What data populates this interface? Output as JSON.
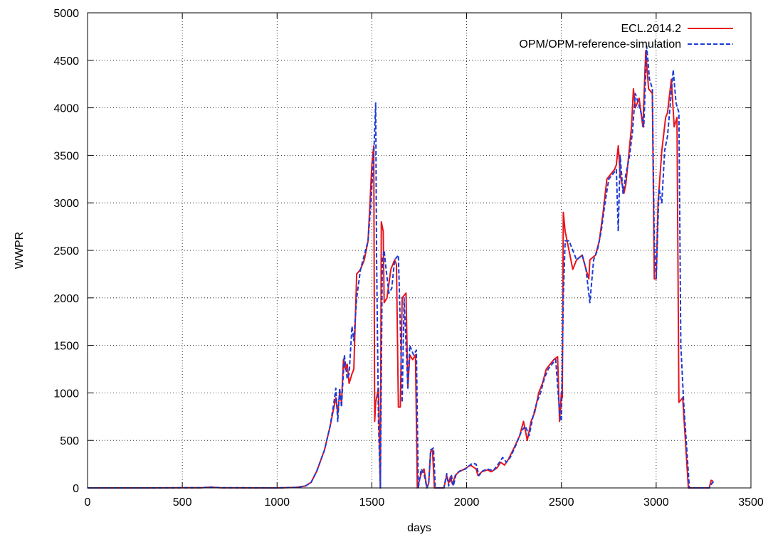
{
  "chart_data": {
    "type": "line",
    "title": "",
    "xlabel": "days",
    "ylabel": "WWPR",
    "xlim": [
      0,
      3500
    ],
    "ylim": [
      0,
      5000
    ],
    "x_ticks": [
      0,
      500,
      1000,
      1500,
      2000,
      2500,
      3000,
      3500
    ],
    "y_ticks": [
      0,
      500,
      1000,
      1500,
      2000,
      2500,
      3000,
      3500,
      4000,
      4500,
      5000
    ],
    "grid": true,
    "legend_position": "top-right",
    "series": [
      {
        "name": "ECL.2014.2",
        "color": "#e8141c",
        "dash": "solid",
        "points": [
          [
            0,
            0
          ],
          [
            300,
            0
          ],
          [
            600,
            2
          ],
          [
            650,
            8
          ],
          [
            700,
            2
          ],
          [
            1000,
            0
          ],
          [
            1100,
            5
          ],
          [
            1150,
            20
          ],
          [
            1180,
            60
          ],
          [
            1210,
            180
          ],
          [
            1250,
            400
          ],
          [
            1280,
            650
          ],
          [
            1300,
            850
          ],
          [
            1310,
            950
          ],
          [
            1320,
            780
          ],
          [
            1330,
            1000
          ],
          [
            1340,
            900
          ],
          [
            1350,
            1350
          ],
          [
            1360,
            1250
          ],
          [
            1370,
            1300
          ],
          [
            1380,
            1100
          ],
          [
            1395,
            1200
          ],
          [
            1405,
            1250
          ],
          [
            1420,
            2250
          ],
          [
            1440,
            2300
          ],
          [
            1460,
            2400
          ],
          [
            1480,
            2600
          ],
          [
            1490,
            3000
          ],
          [
            1500,
            3400
          ],
          [
            1510,
            3600
          ],
          [
            1515,
            700
          ],
          [
            1520,
            900
          ],
          [
            1535,
            1050
          ],
          [
            1545,
            0
          ],
          [
            1550,
            2800
          ],
          [
            1560,
            2700
          ],
          [
            1565,
            1950
          ],
          [
            1580,
            2000
          ],
          [
            1600,
            2300
          ],
          [
            1620,
            2400
          ],
          [
            1630,
            2350
          ],
          [
            1640,
            850
          ],
          [
            1650,
            850
          ],
          [
            1660,
            2000
          ],
          [
            1680,
            2050
          ],
          [
            1690,
            1050
          ],
          [
            1700,
            1400
          ],
          [
            1715,
            1350
          ],
          [
            1730,
            1400
          ],
          [
            1740,
            0
          ],
          [
            1760,
            150
          ],
          [
            1775,
            200
          ],
          [
            1790,
            0
          ],
          [
            1800,
            50
          ],
          [
            1810,
            380
          ],
          [
            1820,
            400
          ],
          [
            1830,
            0
          ],
          [
            1880,
            0
          ],
          [
            1895,
            130
          ],
          [
            1905,
            50
          ],
          [
            1915,
            120
          ],
          [
            1925,
            40
          ],
          [
            1940,
            130
          ],
          [
            1960,
            170
          ],
          [
            1990,
            200
          ],
          [
            2020,
            240
          ],
          [
            2050,
            200
          ],
          [
            2060,
            130
          ],
          [
            2080,
            170
          ],
          [
            2110,
            190
          ],
          [
            2130,
            170
          ],
          [
            2160,
            210
          ],
          [
            2180,
            270
          ],
          [
            2200,
            240
          ],
          [
            2220,
            300
          ],
          [
            2250,
            420
          ],
          [
            2280,
            550
          ],
          [
            2300,
            700
          ],
          [
            2320,
            500
          ],
          [
            2340,
            700
          ],
          [
            2360,
            800
          ],
          [
            2380,
            1000
          ],
          [
            2400,
            1100
          ],
          [
            2420,
            1250
          ],
          [
            2440,
            1300
          ],
          [
            2460,
            1350
          ],
          [
            2480,
            1380
          ],
          [
            2490,
            700
          ],
          [
            2500,
            1000
          ],
          [
            2505,
            950
          ],
          [
            2510,
            2900
          ],
          [
            2520,
            2700
          ],
          [
            2540,
            2500
          ],
          [
            2560,
            2300
          ],
          [
            2580,
            2400
          ],
          [
            2610,
            2450
          ],
          [
            2630,
            2300
          ],
          [
            2645,
            2200
          ],
          [
            2650,
            2400
          ],
          [
            2680,
            2450
          ],
          [
            2700,
            2600
          ],
          [
            2720,
            2900
          ],
          [
            2740,
            3250
          ],
          [
            2760,
            3300
          ],
          [
            2780,
            3350
          ],
          [
            2790,
            3400
          ],
          [
            2800,
            3600
          ],
          [
            2810,
            3300
          ],
          [
            2820,
            3200
          ],
          [
            2830,
            3100
          ],
          [
            2840,
            3200
          ],
          [
            2860,
            3600
          ],
          [
            2870,
            3800
          ],
          [
            2880,
            4200
          ],
          [
            2890,
            4000
          ],
          [
            2910,
            4100
          ],
          [
            2930,
            3800
          ],
          [
            2945,
            4600
          ],
          [
            2960,
            4200
          ],
          [
            2980,
            4150
          ],
          [
            2990,
            2200
          ],
          [
            3000,
            2200
          ],
          [
            3010,
            3000
          ],
          [
            3030,
            3550
          ],
          [
            3050,
            3900
          ],
          [
            3060,
            3950
          ],
          [
            3080,
            4300
          ],
          [
            3095,
            3800
          ],
          [
            3110,
            3900
          ],
          [
            3120,
            900
          ],
          [
            3140,
            950
          ],
          [
            3170,
            0
          ],
          [
            3280,
            0
          ],
          [
            3290,
            80
          ],
          [
            3300,
            70
          ]
        ]
      },
      {
        "name": "OPM/OPM-reference-simulation",
        "color": "#1a3cd8",
        "dash": "dashed",
        "points": [
          [
            0,
            0
          ],
          [
            300,
            0
          ],
          [
            600,
            2
          ],
          [
            650,
            8
          ],
          [
            700,
            2
          ],
          [
            1000,
            0
          ],
          [
            1100,
            5
          ],
          [
            1150,
            20
          ],
          [
            1180,
            60
          ],
          [
            1210,
            180
          ],
          [
            1250,
            400
          ],
          [
            1280,
            650
          ],
          [
            1300,
            900
          ],
          [
            1310,
            1050
          ],
          [
            1320,
            700
          ],
          [
            1330,
            1050
          ],
          [
            1340,
            850
          ],
          [
            1355,
            1400
          ],
          [
            1370,
            1150
          ],
          [
            1380,
            1200
          ],
          [
            1395,
            1700
          ],
          [
            1405,
            1550
          ],
          [
            1420,
            2000
          ],
          [
            1440,
            2300
          ],
          [
            1460,
            2450
          ],
          [
            1480,
            2600
          ],
          [
            1495,
            3000
          ],
          [
            1510,
            3500
          ],
          [
            1520,
            4050
          ],
          [
            1525,
            2400
          ],
          [
            1535,
            700
          ],
          [
            1545,
            0
          ],
          [
            1555,
            2400
          ],
          [
            1565,
            2500
          ],
          [
            1575,
            2300
          ],
          [
            1590,
            2050
          ],
          [
            1605,
            2100
          ],
          [
            1620,
            2400
          ],
          [
            1640,
            2450
          ],
          [
            1650,
            1700
          ],
          [
            1660,
            900
          ],
          [
            1670,
            2000
          ],
          [
            1690,
            1050
          ],
          [
            1700,
            1500
          ],
          [
            1720,
            1400
          ],
          [
            1735,
            1450
          ],
          [
            1745,
            0
          ],
          [
            1760,
            200
          ],
          [
            1775,
            150
          ],
          [
            1790,
            0
          ],
          [
            1800,
            50
          ],
          [
            1810,
            400
          ],
          [
            1825,
            420
          ],
          [
            1835,
            0
          ],
          [
            1880,
            0
          ],
          [
            1895,
            150
          ],
          [
            1905,
            20
          ],
          [
            1920,
            130
          ],
          [
            1930,
            20
          ],
          [
            1945,
            150
          ],
          [
            1965,
            180
          ],
          [
            1995,
            200
          ],
          [
            2030,
            260
          ],
          [
            2050,
            250
          ],
          [
            2065,
            130
          ],
          [
            2085,
            180
          ],
          [
            2110,
            200
          ],
          [
            2140,
            180
          ],
          [
            2170,
            260
          ],
          [
            2190,
            320
          ],
          [
            2210,
            270
          ],
          [
            2230,
            320
          ],
          [
            2260,
            450
          ],
          [
            2290,
            600
          ],
          [
            2310,
            650
          ],
          [
            2330,
            550
          ],
          [
            2350,
            750
          ],
          [
            2370,
            900
          ],
          [
            2390,
            1000
          ],
          [
            2410,
            1150
          ],
          [
            2430,
            1250
          ],
          [
            2450,
            1300
          ],
          [
            2470,
            1350
          ],
          [
            2490,
            800
          ],
          [
            2500,
            700
          ],
          [
            2510,
            2000
          ],
          [
            2520,
            2600
          ],
          [
            2540,
            2600
          ],
          [
            2560,
            2500
          ],
          [
            2580,
            2400
          ],
          [
            2610,
            2450
          ],
          [
            2630,
            2300
          ],
          [
            2650,
            1950
          ],
          [
            2670,
            2400
          ],
          [
            2690,
            2500
          ],
          [
            2710,
            2700
          ],
          [
            2730,
            3000
          ],
          [
            2750,
            3250
          ],
          [
            2770,
            3300
          ],
          [
            2790,
            3350
          ],
          [
            2800,
            2700
          ],
          [
            2810,
            3500
          ],
          [
            2825,
            3100
          ],
          [
            2840,
            3300
          ],
          [
            2860,
            3500
          ],
          [
            2875,
            3750
          ],
          [
            2890,
            4150
          ],
          [
            2905,
            4050
          ],
          [
            2920,
            3950
          ],
          [
            2935,
            3800
          ],
          [
            2950,
            4650
          ],
          [
            2965,
            4300
          ],
          [
            2980,
            4200
          ],
          [
            2990,
            2600
          ],
          [
            3000,
            2200
          ],
          [
            3015,
            3150
          ],
          [
            3030,
            3000
          ],
          [
            3045,
            3550
          ],
          [
            3060,
            3700
          ],
          [
            3075,
            4050
          ],
          [
            3090,
            4400
          ],
          [
            3105,
            4050
          ],
          [
            3120,
            3950
          ],
          [
            3130,
            1500
          ],
          [
            3145,
            900
          ],
          [
            3175,
            0
          ],
          [
            3280,
            0
          ],
          [
            3295,
            50
          ],
          [
            3305,
            70
          ]
        ]
      }
    ]
  }
}
